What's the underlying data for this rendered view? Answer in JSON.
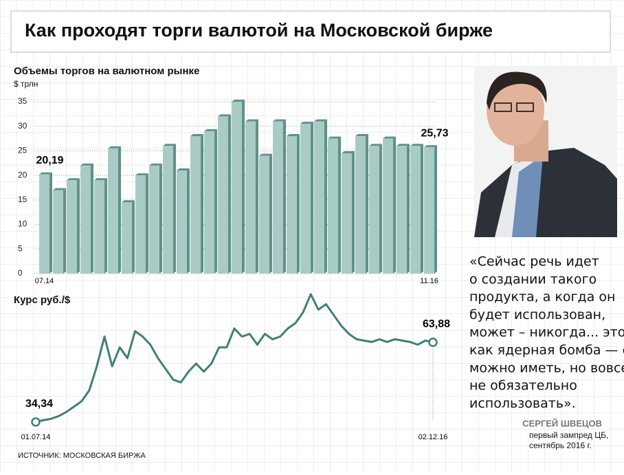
{
  "header": {
    "title": "Как проходят торги валютой на Московской бирже"
  },
  "chart_data": [
    {
      "type": "bar",
      "title": "Объемы торгов на валютном рынке",
      "y_label": "$ трлн",
      "categories": [
        "07.14",
        null,
        null,
        null,
        null,
        null,
        null,
        null,
        null,
        null,
        null,
        null,
        null,
        null,
        null,
        null,
        null,
        null,
        null,
        null,
        null,
        null,
        null,
        null,
        null,
        null,
        null,
        null,
        "11.16"
      ],
      "values": [
        20.19,
        17,
        19,
        22,
        19,
        25.5,
        14.5,
        20,
        22,
        26,
        21,
        28,
        29,
        32,
        35,
        31,
        24,
        31,
        28,
        30.5,
        31,
        27.5,
        24.5,
        28,
        26,
        27.5,
        26,
        26,
        25.73
      ],
      "value_labels": [
        "20,19",
        null,
        null,
        null,
        null,
        null,
        null,
        null,
        null,
        null,
        null,
        null,
        null,
        null,
        null,
        null,
        null,
        null,
        null,
        null,
        null,
        null,
        null,
        null,
        null,
        null,
        null,
        null,
        "25,73"
      ],
      "color": "#a9cbc5",
      "side_color": "#5f918a",
      "ylim": [
        0,
        35
      ],
      "yticks": [
        0,
        5,
        10,
        15,
        20,
        25,
        30,
        35
      ],
      "grid": true
    },
    {
      "type": "line",
      "title": "Курс руб./$",
      "categories": [
        "01.07.14",
        null,
        null,
        null,
        null,
        null,
        null,
        null,
        null,
        null,
        null,
        null,
        null,
        null,
        null,
        null,
        null,
        null,
        null,
        null,
        null,
        null,
        null,
        null,
        null,
        null,
        null,
        null,
        null,
        null,
        null,
        null,
        null,
        null,
        null,
        null,
        null,
        null,
        null,
        null,
        null,
        null,
        null,
        null,
        null,
        null,
        null,
        null,
        null,
        null,
        null,
        null,
        "02.12.16"
      ],
      "values": [
        34.34,
        35,
        35.5,
        36.5,
        38,
        40,
        42,
        46,
        55,
        66,
        55,
        62,
        58,
        68,
        66,
        63,
        58,
        54,
        50,
        49,
        53,
        56,
        53,
        56,
        62,
        62,
        69,
        66,
        67,
        63,
        67,
        65,
        66,
        69,
        71,
        75,
        81.7,
        76,
        78,
        74,
        70,
        67,
        65,
        64.5,
        64,
        65,
        64,
        65,
        64.5,
        64,
        63,
        64.5,
        63.88
      ],
      "value_labels": [
        "34,34",
        null,
        null,
        null,
        null,
        null,
        null,
        null,
        null,
        null,
        null,
        null,
        null,
        null,
        null,
        null,
        null,
        null,
        null,
        null,
        null,
        null,
        null,
        null,
        null,
        null,
        null,
        null,
        null,
        null,
        null,
        null,
        null,
        null,
        null,
        null,
        null,
        null,
        null,
        null,
        null,
        null,
        null,
        null,
        null,
        null,
        null,
        null,
        null,
        null,
        null,
        null,
        "63,88"
      ],
      "color": "#3f7f77",
      "ylim": [
        32,
        84
      ]
    }
  ],
  "quote": {
    "lines": [
      "«Сейчас речь идет",
      "о создании такого",
      "продукта, а когда он",
      "будет использован,",
      "может – никогда... это",
      "как ядерная бомба — ее",
      "можно иметь, но вовсе",
      "не обязательно",
      "использовать»."
    ],
    "author": "СЕРГЕЙ ШВЕЦОВ",
    "position": [
      "первый зампред ЦБ,",
      "сентябрь 2016 г."
    ]
  },
  "source": "ИСТОЧНИК: МОСКОВСКАЯ БИРЖА"
}
